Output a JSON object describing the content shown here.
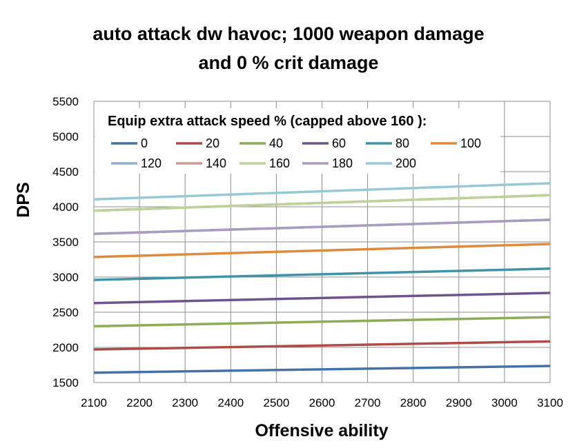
{
  "chart_data": {
    "type": "line",
    "title_lines": [
      "auto attack dw havoc; 1000 weapon damage",
      "and 0 % crit damage"
    ],
    "xlabel": "Offensive ability",
    "ylabel": "DPS",
    "xlim": [
      2100,
      3100
    ],
    "ylim": [
      1500,
      5500
    ],
    "x_ticks": [
      2100,
      2200,
      2300,
      2400,
      2500,
      2600,
      2700,
      2800,
      2900,
      3000,
      3100
    ],
    "y_ticks": [
      1500,
      2000,
      2500,
      3000,
      3500,
      4000,
      4500,
      5000,
      5500
    ],
    "grid": true,
    "legend_title": "Equip extra attack speed % (capped above 160   ):",
    "legend_position": "top-left inside plot",
    "x": [
      2100,
      3100
    ],
    "series": [
      {
        "name": "0",
        "color": "#4472a8",
        "values": [
          1640,
          1735
        ]
      },
      {
        "name": "20",
        "color": "#b04a47",
        "values": [
          1970,
          2085
        ]
      },
      {
        "name": "40",
        "color": "#8cac55",
        "values": [
          2300,
          2430
        ]
      },
      {
        "name": "60",
        "color": "#6e548f",
        "values": [
          2630,
          2775
        ]
      },
      {
        "name": "80",
        "color": "#3e93a8",
        "values": [
          2960,
          3120
        ]
      },
      {
        "name": "100",
        "color": "#e08a3c",
        "values": [
          3285,
          3470
        ]
      },
      {
        "name": "120",
        "color": "#94acd2",
        "values": [
          3615,
          3815
        ]
      },
      {
        "name": "140",
        "color": "#d69896",
        "values": [
          3945,
          4165
        ]
      },
      {
        "name": "160",
        "color": "#bcd39a",
        "values": [
          3945,
          4165
        ]
      },
      {
        "name": "180",
        "color": "#a99bc1",
        "values": [
          3615,
          3815
        ]
      },
      {
        "name": "200",
        "color": "#96c8d6",
        "values": [
          4105,
          4335
        ]
      }
    ]
  }
}
